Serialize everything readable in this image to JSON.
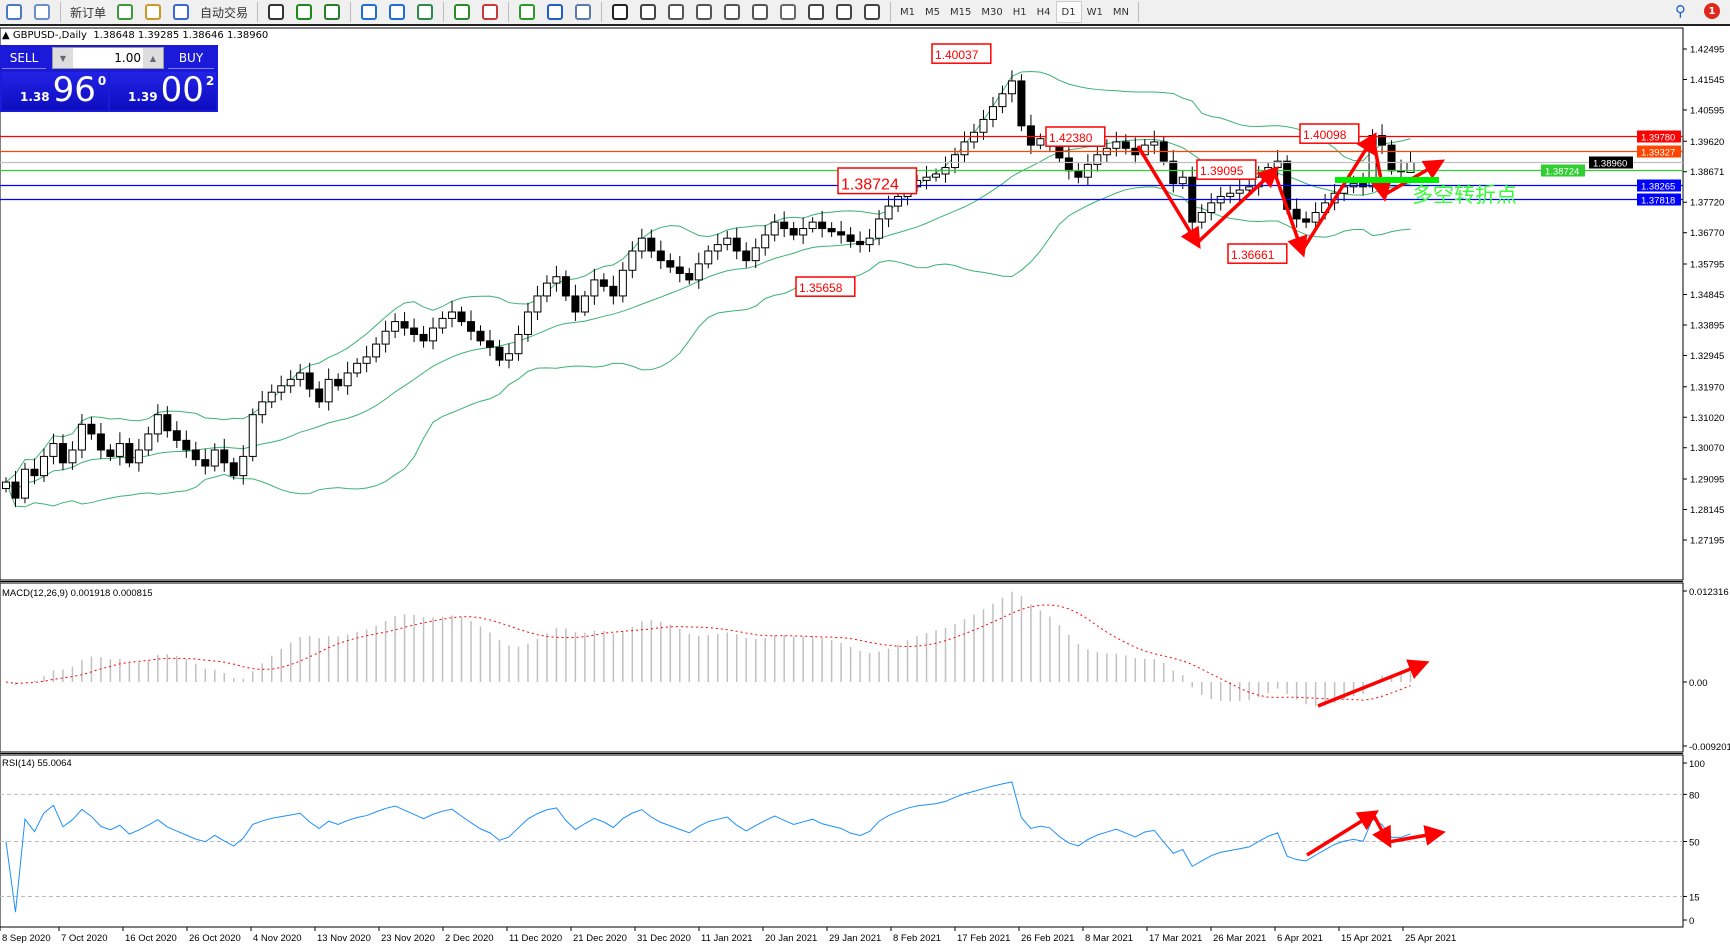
{
  "toolbar": {
    "new_order": "新订单",
    "auto_trading": "自动交易",
    "icons": [
      "new-chart-icon",
      "profiles-icon",
      "market-watch-icon",
      "navigator-icon",
      "data-window-icon",
      "signals-icon",
      "bar-chart-icon",
      "candlestick-icon",
      "line-chart-icon",
      "zoom-in-icon",
      "zoom-out-icon",
      "tile-windows-icon",
      "auto-scroll-icon",
      "chart-shift-icon",
      "indicators-icon",
      "periods-icon",
      "templates-icon",
      "cursor-icon",
      "crosshair-icon",
      "vertical-line-icon",
      "horizontal-line-icon",
      "trendline-icon",
      "equidistant-channel-icon",
      "fibonacci-icon",
      "text-icon",
      "text-label-icon",
      "arrows-icon"
    ],
    "timeframes": [
      "M1",
      "M5",
      "M15",
      "M30",
      "H1",
      "H4",
      "D1",
      "W1",
      "MN"
    ],
    "active_timeframe": "D1",
    "notification_count": "1"
  },
  "chart": {
    "symbol_title": "GBPUSD-,Daily",
    "ohlc": "1.38648 1.39285 1.38646 1.38960"
  },
  "one_click": {
    "sell_label": "SELL",
    "buy_label": "BUY",
    "lot": "1.00",
    "bid_prefix": "1.38",
    "bid_big": "96",
    "bid_sup": "0",
    "ask_prefix": "1.39",
    "ask_big": "00",
    "ask_sup": "2"
  },
  "price_axis": {
    "ticks": [
      "1.42495",
      "1.41545",
      "1.40595",
      "1.39620",
      "1.38671",
      "1.37720",
      "1.36770",
      "1.35795",
      "1.34845",
      "1.33895",
      "1.32945",
      "1.31970",
      "1.31020",
      "1.30070",
      "1.29095",
      "1.28145",
      "1.27195"
    ]
  },
  "horizontal_lines": [
    {
      "price": "1.39780",
      "color": "#ff0000"
    },
    {
      "price": "1.39327",
      "color": "#ff4500"
    },
    {
      "price": "1.38960",
      "color": "#c0c0c0",
      "label_color": "#000000"
    },
    {
      "price": "1.38724",
      "color": "#32cd32"
    },
    {
      "price": "1.38265",
      "color": "#0000ff"
    },
    {
      "price": "1.37818",
      "color": "#0000ff"
    }
  ],
  "annotations": {
    "price_labels": [
      "1.42380",
      "1.40037",
      "1.38724",
      "1.39095",
      "1.35658",
      "1.36661",
      "1.40098"
    ],
    "text": "多空转折点",
    "text_color": "#33ff33",
    "arrow_color": "#ff0000"
  },
  "macd": {
    "title": "MACD(12,26,9) 0.001918 0.000815",
    "axis": [
      "0.012316",
      "0.00",
      "-0.009201"
    ],
    "max": 0.012316,
    "min": -0.009201
  },
  "rsi": {
    "title": "RSI(14) 55.0064",
    "axis": [
      "100",
      "80",
      "50",
      "15",
      "0"
    ],
    "levels": [
      80,
      50,
      15
    ],
    "line_color": "#1e90ff"
  },
  "date_axis": [
    "8 Sep 2020",
    "7 Oct 2020",
    "16 Oct 2020",
    "26 Oct 2020",
    "4 Nov 2020",
    "13 Nov 2020",
    "23 Nov 2020",
    "2 Dec 2020",
    "11 Dec 2020",
    "21 Dec 2020",
    "31 Dec 2020",
    "11 Jan 2021",
    "20 Jan 2021",
    "29 Jan 2021",
    "8 Feb 2021",
    "17 Feb 2021",
    "26 Feb 2021",
    "8 Mar 2021",
    "17 Mar 2021",
    "26 Mar 2021",
    "6 Apr 2021",
    "15 Apr 2021",
    "25 Apr 2021"
  ],
  "chart_data": {
    "type": "candlestick",
    "symbol": "GBPUSD",
    "timeframe": "D1",
    "ylim": [
      1.27195,
      1.42495
    ],
    "last_bar": {
      "open": 1.38648,
      "high": 1.39285,
      "low": 1.38646,
      "close": 1.3896
    },
    "closes": [
      1.29,
      1.285,
      1.294,
      1.292,
      1.298,
      1.302,
      1.296,
      1.3,
      1.308,
      1.305,
      1.3,
      1.298,
      1.302,
      1.296,
      1.3,
      1.305,
      1.311,
      1.306,
      1.303,
      1.3,
      1.297,
      1.295,
      1.3,
      1.296,
      1.292,
      1.298,
      1.311,
      1.315,
      1.318,
      1.32,
      1.322,
      1.324,
      1.319,
      1.315,
      1.322,
      1.32,
      1.324,
      1.327,
      1.329,
      1.333,
      1.337,
      1.34,
      1.338,
      1.336,
      1.334,
      1.338,
      1.341,
      1.343,
      1.34,
      1.337,
      1.334,
      1.332,
      1.328,
      1.33,
      1.336,
      1.343,
      1.348,
      1.352,
      1.354,
      1.348,
      1.343,
      1.348,
      1.353,
      1.351,
      1.348,
      1.356,
      1.362,
      1.366,
      1.362,
      1.359,
      1.357,
      1.355,
      1.353,
      1.358,
      1.362,
      1.364,
      1.366,
      1.362,
      1.359,
      1.363,
      1.367,
      1.371,
      1.369,
      1.367,
      1.369,
      1.371,
      1.369,
      1.368,
      1.367,
      1.365,
      1.364,
      1.366,
      1.372,
      1.376,
      1.379,
      1.382,
      1.384,
      1.385,
      1.386,
      1.388,
      1.392,
      1.396,
      1.399,
      1.403,
      1.407,
      1.411,
      1.415,
      1.401,
      1.395,
      1.397,
      1.396,
      1.391,
      1.387,
      1.385,
      1.389,
      1.392,
      1.394,
      1.396,
      1.394,
      1.392,
      1.395,
      1.396,
      1.39,
      1.383,
      1.385,
      1.371,
      1.374,
      1.377,
      1.379,
      1.38,
      1.381,
      1.382,
      1.385,
      1.388,
      1.39,
      1.375,
      1.372,
      1.371,
      1.374,
      1.377,
      1.38,
      1.382,
      1.383,
      1.382,
      1.398,
      1.395,
      1.387,
      1.387,
      1.3896
    ],
    "indicators": [
      "Bollinger Bands",
      "MACD(12,26,9)",
      "RSI(14)"
    ]
  }
}
